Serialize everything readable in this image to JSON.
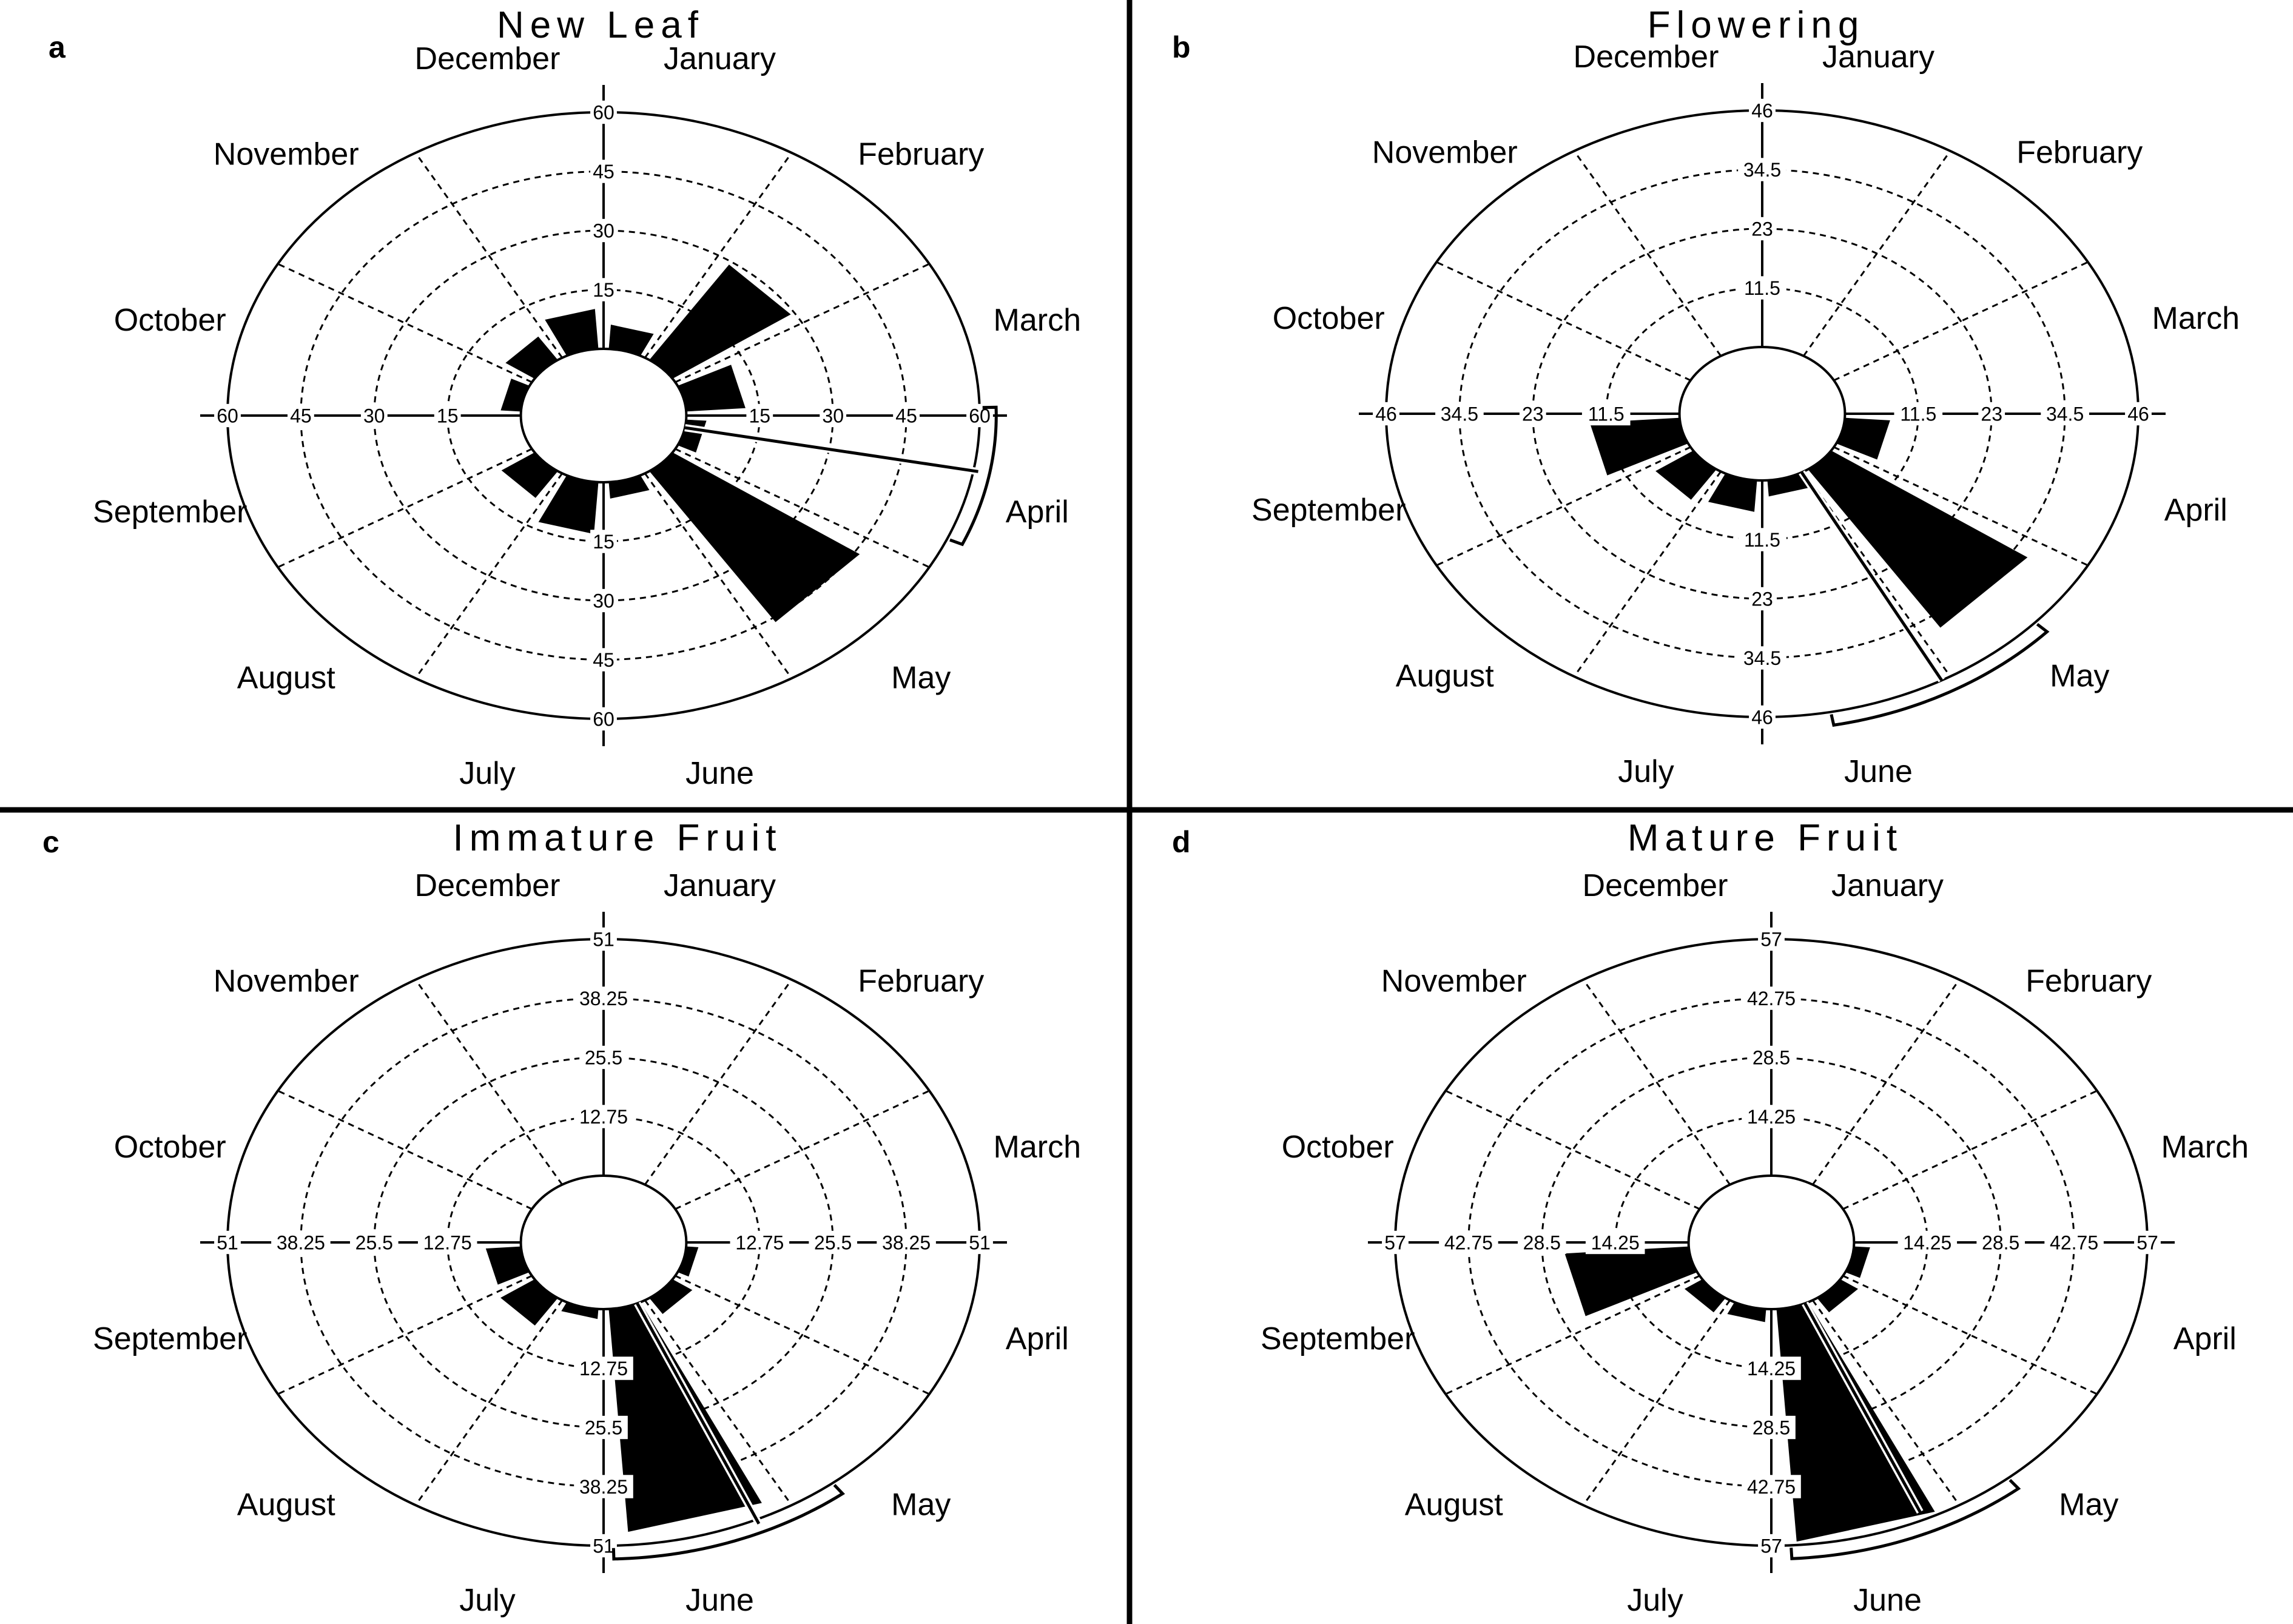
{
  "months": [
    "January",
    "February",
    "March",
    "April",
    "May",
    "June",
    "July",
    "August",
    "September",
    "October",
    "November",
    "December"
  ],
  "chart_data": [
    {
      "type": "circular-histogram",
      "panel_letter": "a",
      "title": "New Leaf",
      "tick_labels": [
        "15",
        "30",
        "45",
        "60"
      ],
      "max": 60,
      "categories": [
        "January",
        "February",
        "March",
        "April",
        "May",
        "June",
        "July",
        "August",
        "September",
        "October",
        "November",
        "December"
      ],
      "values": [
        6,
        29,
        12,
        4,
        46,
        4,
        13,
        8,
        0,
        4,
        7,
        10
      ],
      "mean_vector": {
        "month_position": 3.35,
        "length": 61
      },
      "confidence_arc": {
        "from_month_position": 2.95,
        "to_month_position": 3.8
      }
    },
    {
      "type": "circular-histogram",
      "panel_letter": "b",
      "title": "Flowering",
      "tick_labels": [
        "11.5",
        "23",
        "34.5",
        "46"
      ],
      "max": 46,
      "categories": [
        "January",
        "February",
        "March",
        "April",
        "May",
        "June",
        "July",
        "August",
        "September",
        "October",
        "November",
        "December"
      ],
      "values": [
        0,
        0,
        0,
        7,
        37,
        3,
        6,
        7,
        14,
        0,
        0,
        0
      ],
      "mean_vector": {
        "month_position": 5.05,
        "length": 46
      },
      "confidence_arc": {
        "from_month_position": 4.45,
        "to_month_position": 5.65
      }
    },
    {
      "type": "circular-histogram",
      "panel_letter": "c",
      "title": "Immature Fruit",
      "tick_labels": [
        "12.75",
        "25.5",
        "38.25",
        "51"
      ],
      "max": 51,
      "categories": [
        "January",
        "February",
        "March",
        "April",
        "May",
        "June",
        "July",
        "August",
        "September",
        "October",
        "November",
        "December"
      ],
      "values": [
        0,
        0,
        0,
        2,
        4,
        48,
        2,
        7,
        6,
        0,
        0,
        0
      ],
      "mean_vector": {
        "month_position": 5.2,
        "length": 52
      },
      "confidence_arc": {
        "from_month_position": 4.75,
        "to_month_position": 5.95
      }
    },
    {
      "type": "circular-histogram",
      "panel_letter": "d",
      "title": "Mature Fruit",
      "tick_labels": [
        "14.25",
        "28.5",
        "42.75",
        "57"
      ],
      "max": 57,
      "categories": [
        "January",
        "February",
        "March",
        "April",
        "May",
        "June",
        "July",
        "August",
        "September",
        "October",
        "November",
        "December"
      ],
      "values": [
        0,
        0,
        0,
        3,
        4,
        56,
        3,
        4,
        24,
        0,
        0,
        0
      ],
      "mean_vector": {
        "month_position": 5.2,
        "length": 55
      },
      "confidence_arc": {
        "from_month_position": 4.7,
        "to_month_position": 5.9
      }
    }
  ]
}
